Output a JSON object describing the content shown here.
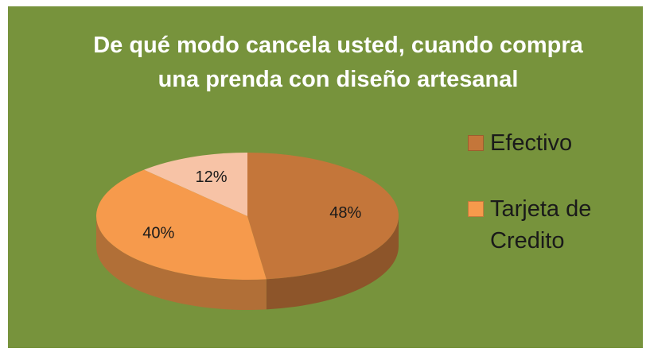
{
  "chart_data": {
    "type": "pie",
    "title": "De qué modo cancela usted, cuando compra una prenda con diseño artesanal",
    "categories": [
      "Efectivo",
      "Tarjeta de Credito",
      null
    ],
    "values": [
      48,
      40,
      12
    ],
    "value_labels": [
      "48%",
      "40%",
      "12%"
    ],
    "colors": [
      "#c4763a",
      "#f69a4c",
      "#f7c3a6"
    ],
    "background": "#77933c",
    "legend": "right"
  }
}
